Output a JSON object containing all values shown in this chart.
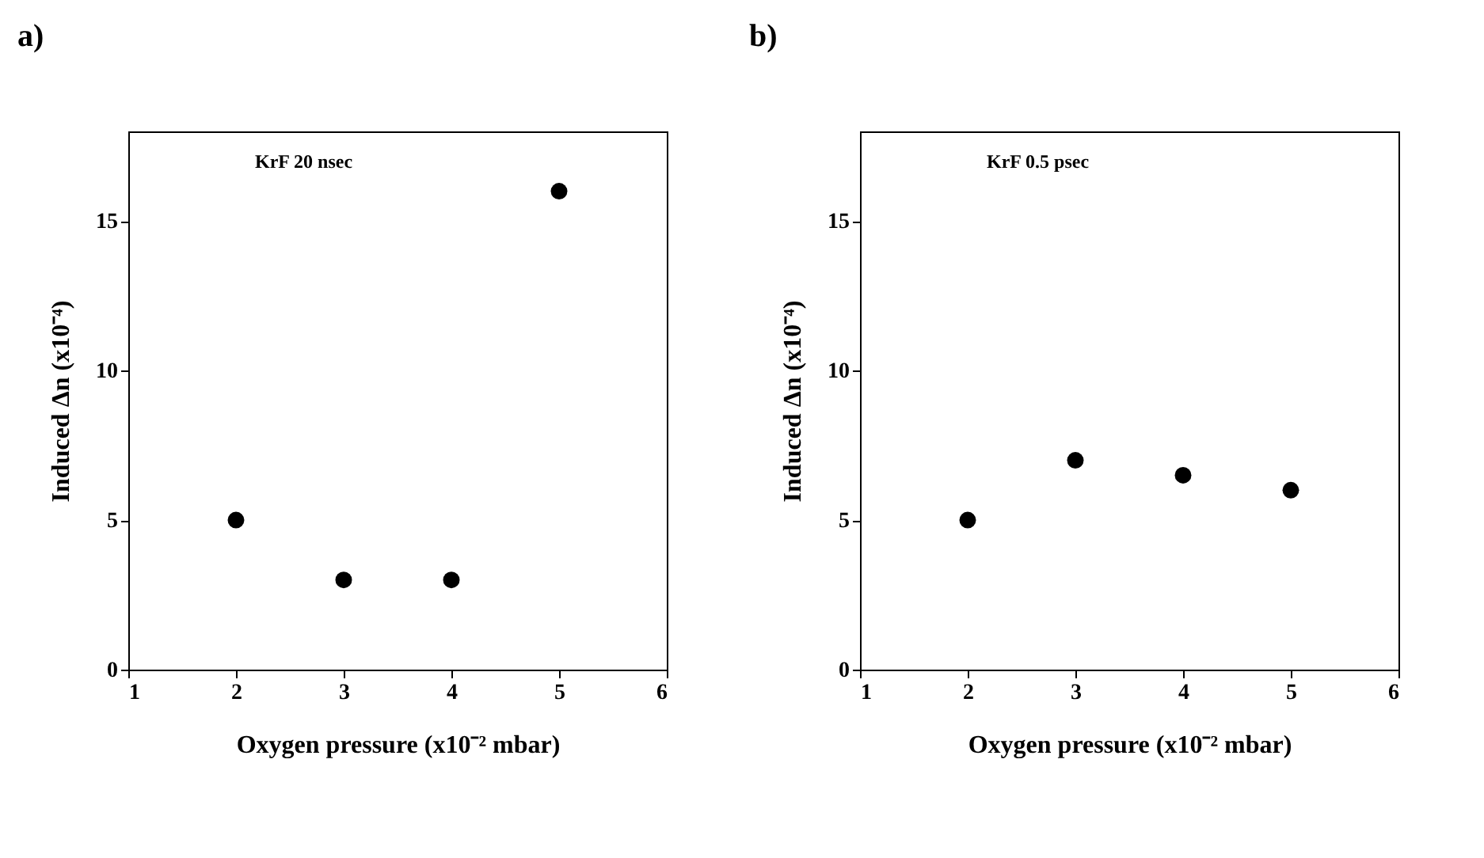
{
  "chart_data": [
    {
      "type": "scatter",
      "title": "a)",
      "xlabel": "Oxygen pressure (x10⁻² mbar)",
      "ylabel": "Induced Δn (x10⁻⁴)",
      "annotations": [
        "KrF 20 nsec"
      ],
      "x": [
        2,
        3,
        4,
        5
      ],
      "values": [
        5,
        3,
        3,
        16
      ],
      "color": "#000000",
      "xlim": [
        1,
        6
      ],
      "xticks": [
        1,
        2,
        3,
        4,
        5,
        6
      ],
      "ylim": [
        0,
        18
      ],
      "yticks": [
        0,
        5,
        10,
        15
      ],
      "marker": "circle",
      "grid": false
    },
    {
      "type": "scatter",
      "title": "b)",
      "xlabel": "Oxygen pressure (x10⁻² mbar)",
      "ylabel": "Induced Δn (x10⁻⁴)",
      "annotations": [
        "KrF 0.5 psec"
      ],
      "x": [
        2,
        3,
        4,
        5
      ],
      "values": [
        5,
        7,
        6.5,
        6
      ],
      "color": "#000000",
      "xlim": [
        1,
        6
      ],
      "xticks": [
        1,
        2,
        3,
        4,
        5,
        6
      ],
      "ylim": [
        0,
        18
      ],
      "yticks": [
        0,
        5,
        10,
        15
      ],
      "marker": "circle",
      "grid": false
    }
  ]
}
